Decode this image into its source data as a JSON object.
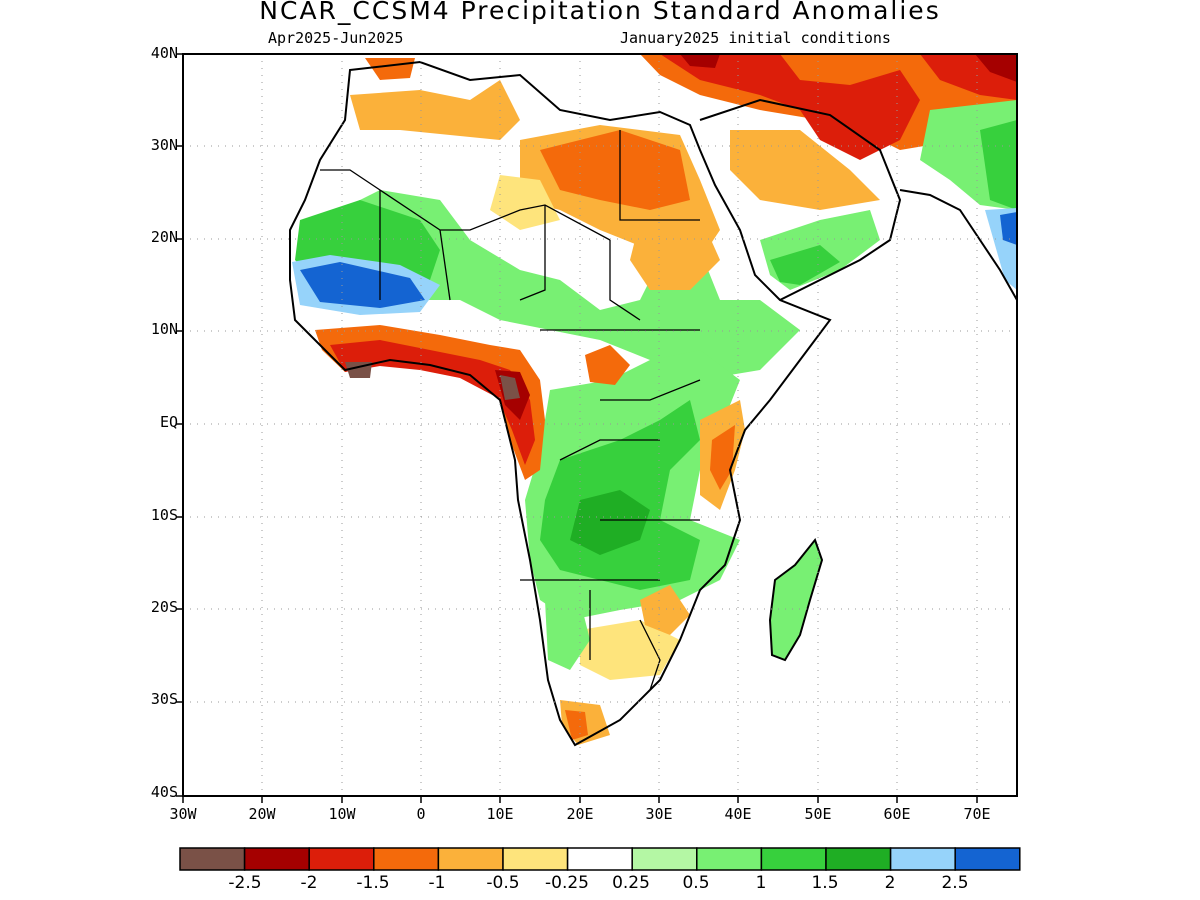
{
  "title": "NCAR_CCSM4 Precipitation Standard Anomalies",
  "subtitle_left": "Apr2025-Jun2025",
  "subtitle_right": "January2025 initial conditions",
  "lat_labels": [
    "40N",
    "30N",
    "20N",
    "10N",
    "EQ",
    "10S",
    "20S",
    "30S",
    "40S"
  ],
  "lon_labels": [
    "30W",
    "20W",
    "10W",
    "0",
    "10E",
    "20E",
    "30E",
    "40E",
    "50E",
    "60E",
    "70E"
  ],
  "colorbar": {
    "colors": [
      "#7a5147",
      "#a50000",
      "#dc1e0a",
      "#f46a0b",
      "#fbb13a",
      "#fee47c",
      "#ffffff",
      "#b4f7a4",
      "#78f073",
      "#37d03d",
      "#1fae24",
      "#96d3fa",
      "#1464d2"
    ],
    "labels": [
      "-2.5",
      "-2",
      "-1.5",
      "-1",
      "-0.5",
      "-0.25",
      "0.25",
      "0.5",
      "1",
      "1.5",
      "2",
      "2.5"
    ]
  }
}
